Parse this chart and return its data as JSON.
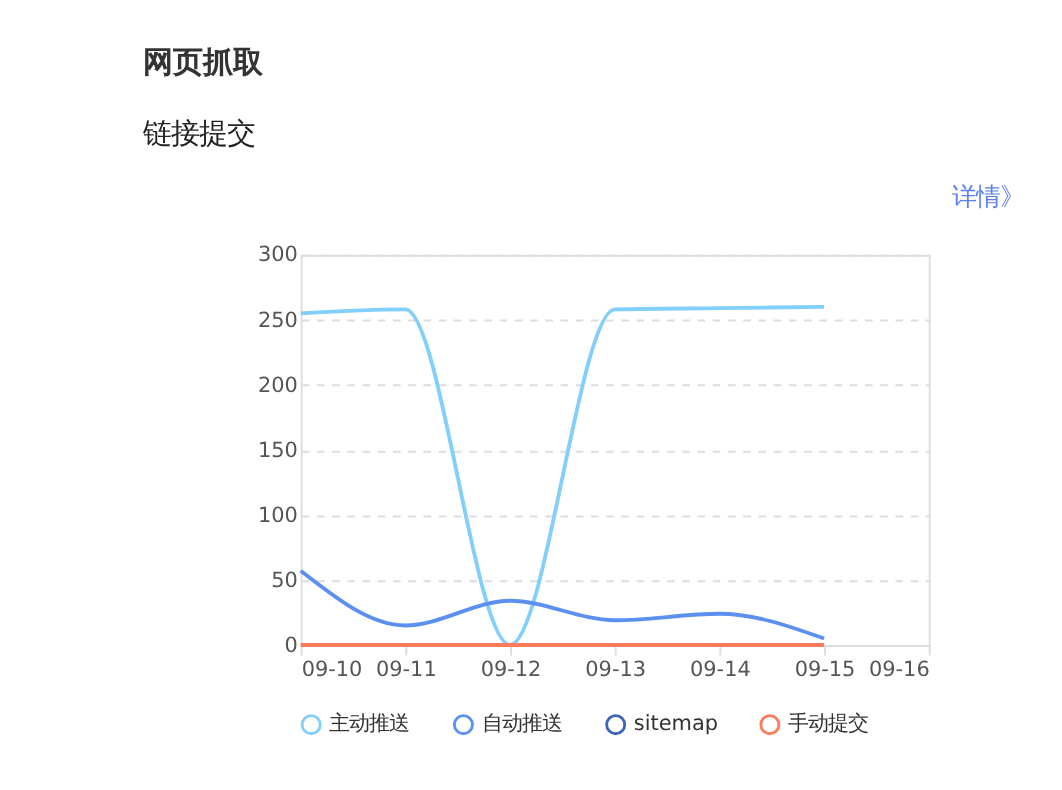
{
  "chart_data": {
    "type": "line",
    "title": "网页抓取",
    "subtitle": "链接提交",
    "annotations": [
      "详情》"
    ],
    "categories": [
      "09-10",
      "09-11",
      "09-12",
      "09-13",
      "09-14",
      "09-15",
      "09-16"
    ],
    "series": [
      {
        "name": "主动推送",
        "color": "#81cffa",
        "values": [
          255,
          258,
          0,
          258,
          259,
          260,
          null
        ]
      },
      {
        "name": "自动推送",
        "color": "#5b8ff0",
        "values": [
          57,
          15,
          34,
          19,
          24,
          5,
          null
        ]
      },
      {
        "name": "sitemap",
        "color": "#3d64b5",
        "values": [
          null,
          null,
          null,
          null,
          null,
          null,
          null
        ]
      },
      {
        "name": "手动提交",
        "color": "#ff7a5c",
        "values": [
          0,
          0,
          0,
          0,
          0,
          0,
          null
        ]
      }
    ],
    "ylim": [
      0,
      300
    ],
    "yticks": [
      0,
      50,
      100,
      150,
      200,
      250,
      300
    ],
    "grid": "y",
    "legend": "bottom",
    "marker": "none",
    "line_style": "solid"
  }
}
